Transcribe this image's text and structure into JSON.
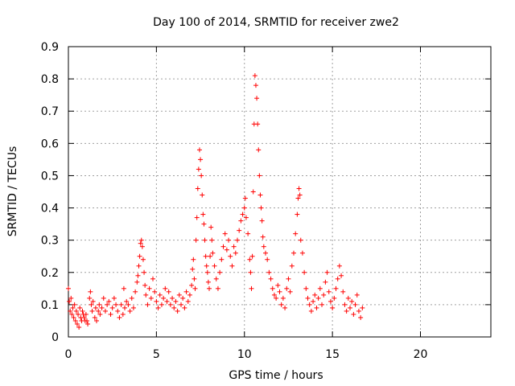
{
  "chart_data": {
    "type": "scatter",
    "title": "Day 100 of 2014, SRMTID for receiver zwe2",
    "xlabel": "GPS time / hours",
    "ylabel": "SRMTID / TECUs",
    "xlim": [
      0,
      24
    ],
    "ylim": [
      0,
      0.9
    ],
    "xticks": [
      0,
      5,
      10,
      15,
      20
    ],
    "yticks": [
      0,
      0.1,
      0.2,
      0.3,
      0.4,
      0.5,
      0.6,
      0.7,
      0.8,
      0.9
    ],
    "grid": true,
    "marker": "+",
    "color": "#ff0000",
    "series": [
      {
        "name": "zwe2",
        "points": [
          [
            0.0,
            0.15
          ],
          [
            0.05,
            0.11
          ],
          [
            0.1,
            0.08
          ],
          [
            0.15,
            0.12
          ],
          [
            0.2,
            0.07
          ],
          [
            0.25,
            0.09
          ],
          [
            0.3,
            0.06
          ],
          [
            0.35,
            0.1
          ],
          [
            0.4,
            0.05
          ],
          [
            0.45,
            0.08
          ],
          [
            0.5,
            0.04
          ],
          [
            0.55,
            0.07
          ],
          [
            0.6,
            0.03
          ],
          [
            0.65,
            0.09
          ],
          [
            0.7,
            0.06
          ],
          [
            0.75,
            0.05
          ],
          [
            0.8,
            0.08
          ],
          [
            0.85,
            0.07
          ],
          [
            0.9,
            0.06
          ],
          [
            0.95,
            0.05
          ],
          [
            1.0,
            0.07
          ],
          [
            1.05,
            0.05
          ],
          [
            1.1,
            0.04
          ],
          [
            1.2,
            0.12
          ],
          [
            1.25,
            0.14
          ],
          [
            1.3,
            0.1
          ],
          [
            1.35,
            0.08
          ],
          [
            1.4,
            0.11
          ],
          [
            1.5,
            0.06
          ],
          [
            1.55,
            0.09
          ],
          [
            1.6,
            0.05
          ],
          [
            1.7,
            0.08
          ],
          [
            1.75,
            0.1
          ],
          [
            1.8,
            0.07
          ],
          [
            1.9,
            0.09
          ],
          [
            2.0,
            0.12
          ],
          [
            2.1,
            0.08
          ],
          [
            2.2,
            0.1
          ],
          [
            2.3,
            0.11
          ],
          [
            2.4,
            0.07
          ],
          [
            2.5,
            0.09
          ],
          [
            2.6,
            0.12
          ],
          [
            2.7,
            0.1
          ],
          [
            2.8,
            0.08
          ],
          [
            2.9,
            0.06
          ],
          [
            3.0,
            0.1
          ],
          [
            3.1,
            0.07
          ],
          [
            3.15,
            0.15
          ],
          [
            3.2,
            0.09
          ],
          [
            3.3,
            0.11
          ],
          [
            3.4,
            0.1
          ],
          [
            3.5,
            0.08
          ],
          [
            3.6,
            0.12
          ],
          [
            3.7,
            0.09
          ],
          [
            3.8,
            0.14
          ],
          [
            3.9,
            0.17
          ],
          [
            3.95,
            0.19
          ],
          [
            4.0,
            0.22
          ],
          [
            4.05,
            0.25
          ],
          [
            4.1,
            0.29
          ],
          [
            4.15,
            0.3
          ],
          [
            4.2,
            0.28
          ],
          [
            4.25,
            0.24
          ],
          [
            4.3,
            0.2
          ],
          [
            4.35,
            0.16
          ],
          [
            4.4,
            0.13
          ],
          [
            4.5,
            0.1
          ],
          [
            4.6,
            0.15
          ],
          [
            4.7,
            0.12
          ],
          [
            4.8,
            0.18
          ],
          [
            4.9,
            0.14
          ],
          [
            5.0,
            0.11
          ],
          [
            5.1,
            0.09
          ],
          [
            5.2,
            0.13
          ],
          [
            5.3,
            0.1
          ],
          [
            5.4,
            0.12
          ],
          [
            5.5,
            0.15
          ],
          [
            5.6,
            0.11
          ],
          [
            5.7,
            0.14
          ],
          [
            5.8,
            0.1
          ],
          [
            5.9,
            0.12
          ],
          [
            6.0,
            0.09
          ],
          [
            6.1,
            0.11
          ],
          [
            6.2,
            0.08
          ],
          [
            6.3,
            0.13
          ],
          [
            6.4,
            0.1
          ],
          [
            6.5,
            0.12
          ],
          [
            6.6,
            0.09
          ],
          [
            6.7,
            0.14
          ],
          [
            6.8,
            0.11
          ],
          [
            6.9,
            0.13
          ],
          [
            7.0,
            0.16
          ],
          [
            7.05,
            0.21
          ],
          [
            7.1,
            0.24
          ],
          [
            7.15,
            0.18
          ],
          [
            7.2,
            0.15
          ],
          [
            7.25,
            0.3
          ],
          [
            7.3,
            0.37
          ],
          [
            7.35,
            0.46
          ],
          [
            7.4,
            0.52
          ],
          [
            7.45,
            0.58
          ],
          [
            7.5,
            0.55
          ],
          [
            7.55,
            0.5
          ],
          [
            7.6,
            0.44
          ],
          [
            7.65,
            0.38
          ],
          [
            7.7,
            0.35
          ],
          [
            7.75,
            0.3
          ],
          [
            7.8,
            0.25
          ],
          [
            7.85,
            0.22
          ],
          [
            7.9,
            0.2
          ],
          [
            7.95,
            0.17
          ],
          [
            8.0,
            0.15
          ],
          [
            8.05,
            0.25
          ],
          [
            8.1,
            0.34
          ],
          [
            8.15,
            0.3
          ],
          [
            8.2,
            0.26
          ],
          [
            8.3,
            0.22
          ],
          [
            8.4,
            0.18
          ],
          [
            8.5,
            0.15
          ],
          [
            8.6,
            0.2
          ],
          [
            8.7,
            0.24
          ],
          [
            8.8,
            0.28
          ],
          [
            8.9,
            0.32
          ],
          [
            9.0,
            0.27
          ],
          [
            9.1,
            0.3
          ],
          [
            9.2,
            0.25
          ],
          [
            9.3,
            0.22
          ],
          [
            9.4,
            0.28
          ],
          [
            9.5,
            0.26
          ],
          [
            9.6,
            0.3
          ],
          [
            9.7,
            0.33
          ],
          [
            9.8,
            0.36
          ],
          [
            9.9,
            0.38
          ],
          [
            10.0,
            0.4
          ],
          [
            10.05,
            0.43
          ],
          [
            10.1,
            0.37
          ],
          [
            10.2,
            0.32
          ],
          [
            10.3,
            0.24
          ],
          [
            10.35,
            0.2
          ],
          [
            10.4,
            0.15
          ],
          [
            10.45,
            0.25
          ],
          [
            10.5,
            0.45
          ],
          [
            10.55,
            0.66
          ],
          [
            10.6,
            0.81
          ],
          [
            10.65,
            0.78
          ],
          [
            10.7,
            0.74
          ],
          [
            10.75,
            0.66
          ],
          [
            10.8,
            0.58
          ],
          [
            10.85,
            0.5
          ],
          [
            10.9,
            0.44
          ],
          [
            10.95,
            0.4
          ],
          [
            11.0,
            0.36
          ],
          [
            11.05,
            0.31
          ],
          [
            11.1,
            0.28
          ],
          [
            11.2,
            0.26
          ],
          [
            11.3,
            0.24
          ],
          [
            11.4,
            0.2
          ],
          [
            11.5,
            0.18
          ],
          [
            11.6,
            0.15
          ],
          [
            11.7,
            0.13
          ],
          [
            11.8,
            0.12
          ],
          [
            11.9,
            0.16
          ],
          [
            12.0,
            0.14
          ],
          [
            12.1,
            0.1
          ],
          [
            12.2,
            0.12
          ],
          [
            12.3,
            0.09
          ],
          [
            12.4,
            0.15
          ],
          [
            12.5,
            0.18
          ],
          [
            12.6,
            0.14
          ],
          [
            12.7,
            0.22
          ],
          [
            12.8,
            0.26
          ],
          [
            12.9,
            0.32
          ],
          [
            13.0,
            0.38
          ],
          [
            13.05,
            0.43
          ],
          [
            13.1,
            0.46
          ],
          [
            13.15,
            0.44
          ],
          [
            13.2,
            0.3
          ],
          [
            13.3,
            0.26
          ],
          [
            13.4,
            0.2
          ],
          [
            13.5,
            0.15
          ],
          [
            13.6,
            0.12
          ],
          [
            13.7,
            0.1
          ],
          [
            13.8,
            0.08
          ],
          [
            13.9,
            0.11
          ],
          [
            14.0,
            0.13
          ],
          [
            14.1,
            0.09
          ],
          [
            14.2,
            0.12
          ],
          [
            14.3,
            0.15
          ],
          [
            14.4,
            0.1
          ],
          [
            14.5,
            0.13
          ],
          [
            14.6,
            0.17
          ],
          [
            14.7,
            0.2
          ],
          [
            14.8,
            0.14
          ],
          [
            14.9,
            0.11
          ],
          [
            15.0,
            0.09
          ],
          [
            15.1,
            0.12
          ],
          [
            15.2,
            0.15
          ],
          [
            15.3,
            0.18
          ],
          [
            15.4,
            0.22
          ],
          [
            15.5,
            0.19
          ],
          [
            15.6,
            0.14
          ],
          [
            15.7,
            0.1
          ],
          [
            15.8,
            0.08
          ],
          [
            15.9,
            0.12
          ],
          [
            16.0,
            0.09
          ],
          [
            16.1,
            0.11
          ],
          [
            16.2,
            0.07
          ],
          [
            16.3,
            0.1
          ],
          [
            16.4,
            0.13
          ],
          [
            16.5,
            0.08
          ],
          [
            16.6,
            0.06
          ],
          [
            16.7,
            0.09
          ]
        ]
      }
    ]
  }
}
